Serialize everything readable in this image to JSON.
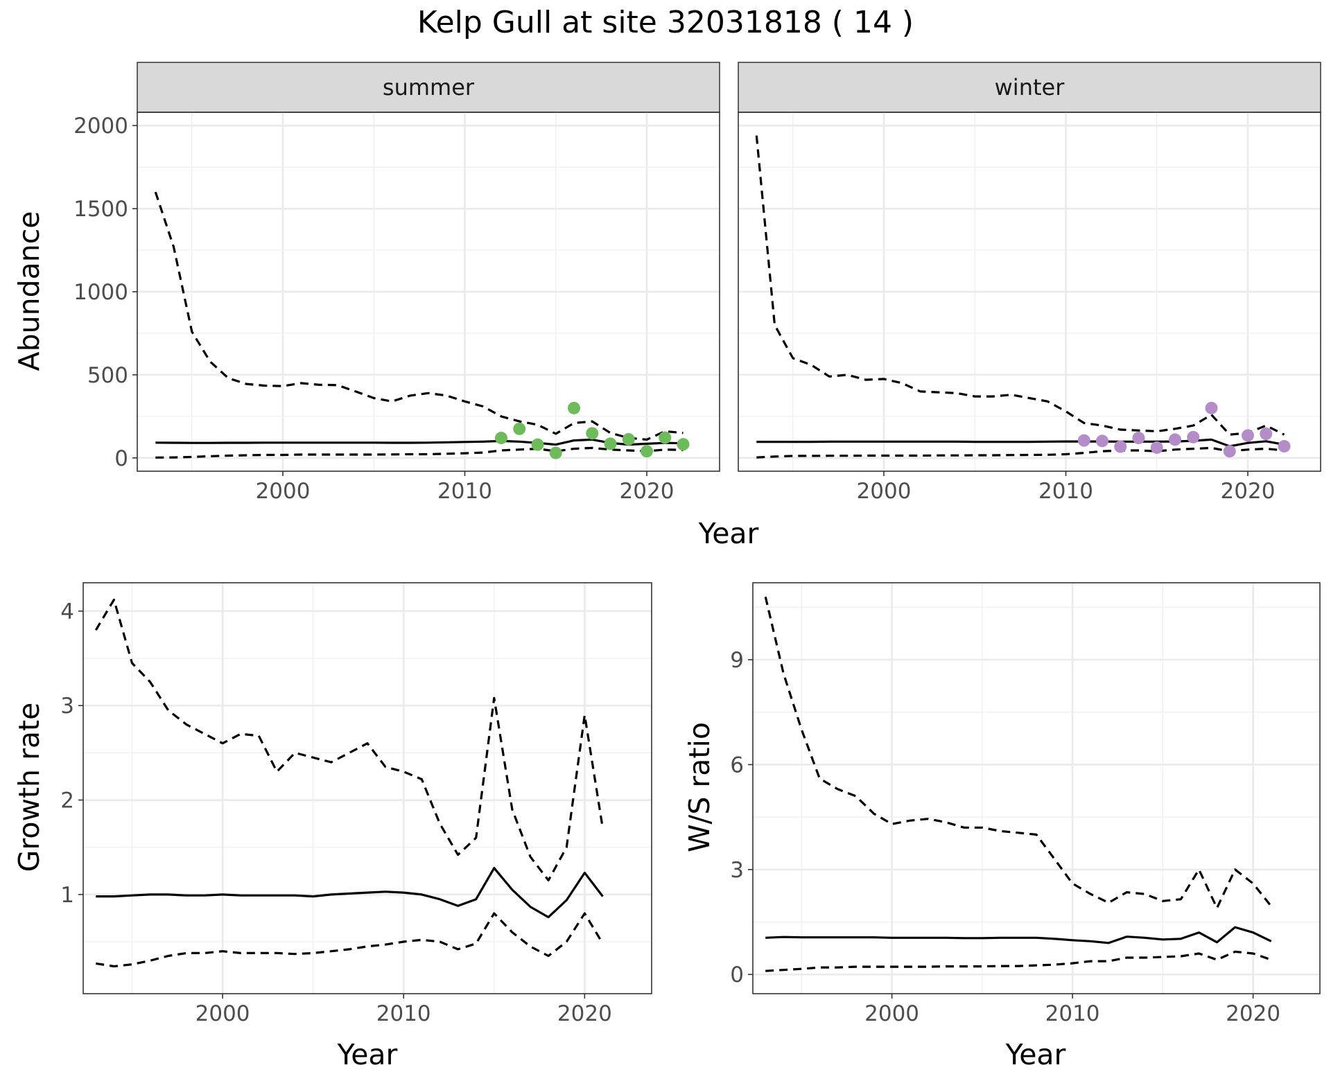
{
  "colors": {
    "summer_points": "#6dbb5a",
    "winter_points": "#b48cc8",
    "lines": "#000000",
    "strip_fill": "#d9d9d9"
  },
  "chart_data": [
    {
      "type": "line",
      "panel": "abundance",
      "title": "Kelp Gull at site 32031818 ( 14 )",
      "xlabel": "Year",
      "ylabel": "Abundance",
      "xlim": [
        1992,
        2024
      ],
      "ylim": [
        -80,
        2080
      ],
      "xticks": [
        2000,
        2010,
        2020
      ],
      "yticks": [
        0,
        500,
        1000,
        1500,
        2000
      ],
      "grid": true,
      "facets": [
        {
          "label": "summer",
          "point_color": "#6dbb5a",
          "x": [
            1993,
            1994,
            1995,
            1996,
            1997,
            1998,
            1999,
            2000,
            2001,
            2002,
            2003,
            2004,
            2005,
            2006,
            2007,
            2008,
            2009,
            2010,
            2011,
            2012,
            2013,
            2014,
            2015,
            2016,
            2017,
            2018,
            2019,
            2020,
            2021,
            2022
          ],
          "series": [
            {
              "name": "mean",
              "style": "solid",
              "values": [
                92,
                91,
                90,
                90,
                91,
                91,
                92,
                92,
                92,
                92,
                92,
                92,
                92,
                91,
                91,
                92,
                94,
                96,
                98,
                102,
                98,
                90,
                80,
                105,
                110,
                90,
                80,
                85,
                90,
                88
              ]
            },
            {
              "name": "upper",
              "style": "dashed",
              "values": [
                1600,
                1270,
                760,
                580,
                480,
                445,
                435,
                432,
                450,
                440,
                438,
                400,
                360,
                340,
                375,
                390,
                375,
                340,
                310,
                250,
                220,
                200,
                145,
                210,
                220,
                150,
                120,
                110,
                160,
                150
              ]
            },
            {
              "name": "lower",
              "style": "dashed",
              "values": [
                2,
                3,
                6,
                10,
                14,
                16,
                18,
                18,
                20,
                20,
                20,
                20,
                20,
                21,
                22,
                22,
                25,
                28,
                32,
                45,
                50,
                55,
                40,
                55,
                60,
                50,
                45,
                40,
                50,
                48
              ]
            }
          ],
          "points": {
            "x": [
              2012,
              2013,
              2014,
              2015,
              2016,
              2017,
              2018,
              2019,
              2020,
              2021,
              2022
            ],
            "y": [
              120,
              175,
              80,
              30,
              300,
              148,
              85,
              112,
              40,
              122,
              82
            ]
          }
        },
        {
          "label": "winter",
          "point_color": "#b48cc8",
          "x": [
            1993,
            1994,
            1995,
            1996,
            1997,
            1998,
            1999,
            2000,
            2001,
            2002,
            2003,
            2004,
            2005,
            2006,
            2007,
            2008,
            2009,
            2010,
            2011,
            2012,
            2013,
            2014,
            2015,
            2016,
            2017,
            2018,
            2019,
            2020,
            2021,
            2022
          ],
          "series": [
            {
              "name": "mean",
              "style": "solid",
              "values": [
                97,
                97,
                97,
                97,
                98,
                98,
                98,
                98,
                98,
                98,
                98,
                98,
                97,
                97,
                97,
                97,
                98,
                99,
                99,
                99,
                98,
                98,
                98,
                99,
                103,
                110,
                70,
                90,
                100,
                80
              ]
            },
            {
              "name": "upper",
              "style": "dashed",
              "values": [
                1940,
                800,
                600,
                560,
                490,
                500,
                470,
                475,
                450,
                400,
                395,
                390,
                370,
                370,
                380,
                360,
                340,
                280,
                210,
                195,
                170,
                165,
                160,
                175,
                195,
                260,
                140,
                150,
                195,
                140
              ]
            },
            {
              "name": "lower",
              "style": "dashed",
              "values": [
                3,
                8,
                12,
                12,
                13,
                13,
                14,
                14,
                14,
                14,
                15,
                15,
                16,
                16,
                17,
                18,
                19,
                22,
                30,
                40,
                45,
                45,
                40,
                50,
                55,
                60,
                40,
                50,
                55,
                45
              ]
            }
          ],
          "points": {
            "x": [
              2011,
              2012,
              2013,
              2014,
              2015,
              2016,
              2017,
              2018,
              2019,
              2020,
              2021,
              2022
            ],
            "y": [
              105,
              102,
              68,
              120,
              62,
              110,
              125,
              300,
              40,
              135,
              145,
              70
            ]
          }
        }
      ]
    },
    {
      "type": "line",
      "panel": "growth",
      "xlabel": "Year",
      "ylabel": "Growth rate",
      "xlim": [
        1992.3,
        2023.7
      ],
      "ylim": [
        -0.05,
        4.3
      ],
      "xticks": [
        2000,
        2010,
        2020
      ],
      "yticks": [
        1,
        2,
        3,
        4
      ],
      "grid": true,
      "x": [
        1993,
        1994,
        1995,
        1996,
        1997,
        1998,
        1999,
        2000,
        2001,
        2002,
        2003,
        2004,
        2005,
        2006,
        2007,
        2008,
        2009,
        2010,
        2011,
        2012,
        2013,
        2014,
        2015,
        2016,
        2017,
        2018,
        2019,
        2020,
        2021
      ],
      "series": [
        {
          "name": "mean",
          "style": "solid",
          "values": [
            0.98,
            0.98,
            0.99,
            1.0,
            1.0,
            0.99,
            0.99,
            1.0,
            0.99,
            0.99,
            0.99,
            0.99,
            0.98,
            1.0,
            1.01,
            1.02,
            1.03,
            1.02,
            1.0,
            0.95,
            0.88,
            0.95,
            1.28,
            1.05,
            0.87,
            0.76,
            0.94,
            1.23,
            0.98
          ]
        },
        {
          "name": "upper",
          "style": "dashed",
          "values": [
            3.8,
            4.12,
            3.45,
            3.25,
            2.95,
            2.8,
            2.7,
            2.6,
            2.7,
            2.68,
            2.3,
            2.5,
            2.45,
            2.4,
            2.5,
            2.6,
            2.35,
            2.3,
            2.22,
            1.75,
            1.42,
            1.6,
            3.08,
            1.9,
            1.4,
            1.15,
            1.5,
            2.9,
            1.7
          ]
        },
        {
          "name": "lower",
          "style": "dashed",
          "values": [
            0.27,
            0.24,
            0.26,
            0.3,
            0.35,
            0.38,
            0.38,
            0.4,
            0.38,
            0.38,
            0.38,
            0.37,
            0.38,
            0.4,
            0.42,
            0.45,
            0.47,
            0.5,
            0.52,
            0.5,
            0.42,
            0.48,
            0.8,
            0.6,
            0.45,
            0.35,
            0.5,
            0.8,
            0.48
          ]
        }
      ]
    },
    {
      "type": "line",
      "panel": "ratio",
      "xlabel": "Year",
      "ylabel": "W/S ratio",
      "xlim": [
        1992.3,
        2023.7
      ],
      "ylim": [
        -0.55,
        11.2
      ],
      "xticks": [
        2000,
        2010,
        2020
      ],
      "yticks": [
        0,
        3,
        6,
        9
      ],
      "grid": true,
      "x": [
        1993,
        1994,
        1995,
        1996,
        1997,
        1998,
        1999,
        2000,
        2001,
        2002,
        2003,
        2004,
        2005,
        2006,
        2007,
        2008,
        2009,
        2010,
        2011,
        2012,
        2013,
        2014,
        2015,
        2016,
        2017,
        2018,
        2019,
        2020,
        2021
      ],
      "series": [
        {
          "name": "mean",
          "style": "solid",
          "values": [
            1.05,
            1.07,
            1.06,
            1.06,
            1.06,
            1.06,
            1.06,
            1.05,
            1.05,
            1.05,
            1.05,
            1.04,
            1.04,
            1.05,
            1.05,
            1.05,
            1.02,
            0.98,
            0.95,
            0.9,
            1.08,
            1.05,
            1.0,
            1.02,
            1.2,
            0.92,
            1.35,
            1.2,
            0.95
          ]
        },
        {
          "name": "upper",
          "style": "dashed",
          "values": [
            10.8,
            8.6,
            7.0,
            5.6,
            5.3,
            5.1,
            4.6,
            4.3,
            4.4,
            4.45,
            4.35,
            4.2,
            4.2,
            4.1,
            4.05,
            4.0,
            3.3,
            2.6,
            2.3,
            2.05,
            2.35,
            2.3,
            2.1,
            2.15,
            3.0,
            1.9,
            3.0,
            2.6,
            1.95
          ]
        },
        {
          "name": "lower",
          "style": "dashed",
          "values": [
            0.1,
            0.13,
            0.16,
            0.2,
            0.2,
            0.22,
            0.22,
            0.22,
            0.22,
            0.22,
            0.23,
            0.23,
            0.23,
            0.24,
            0.24,
            0.26,
            0.28,
            0.32,
            0.38,
            0.38,
            0.48,
            0.48,
            0.5,
            0.52,
            0.6,
            0.42,
            0.65,
            0.6,
            0.42
          ]
        }
      ]
    }
  ]
}
